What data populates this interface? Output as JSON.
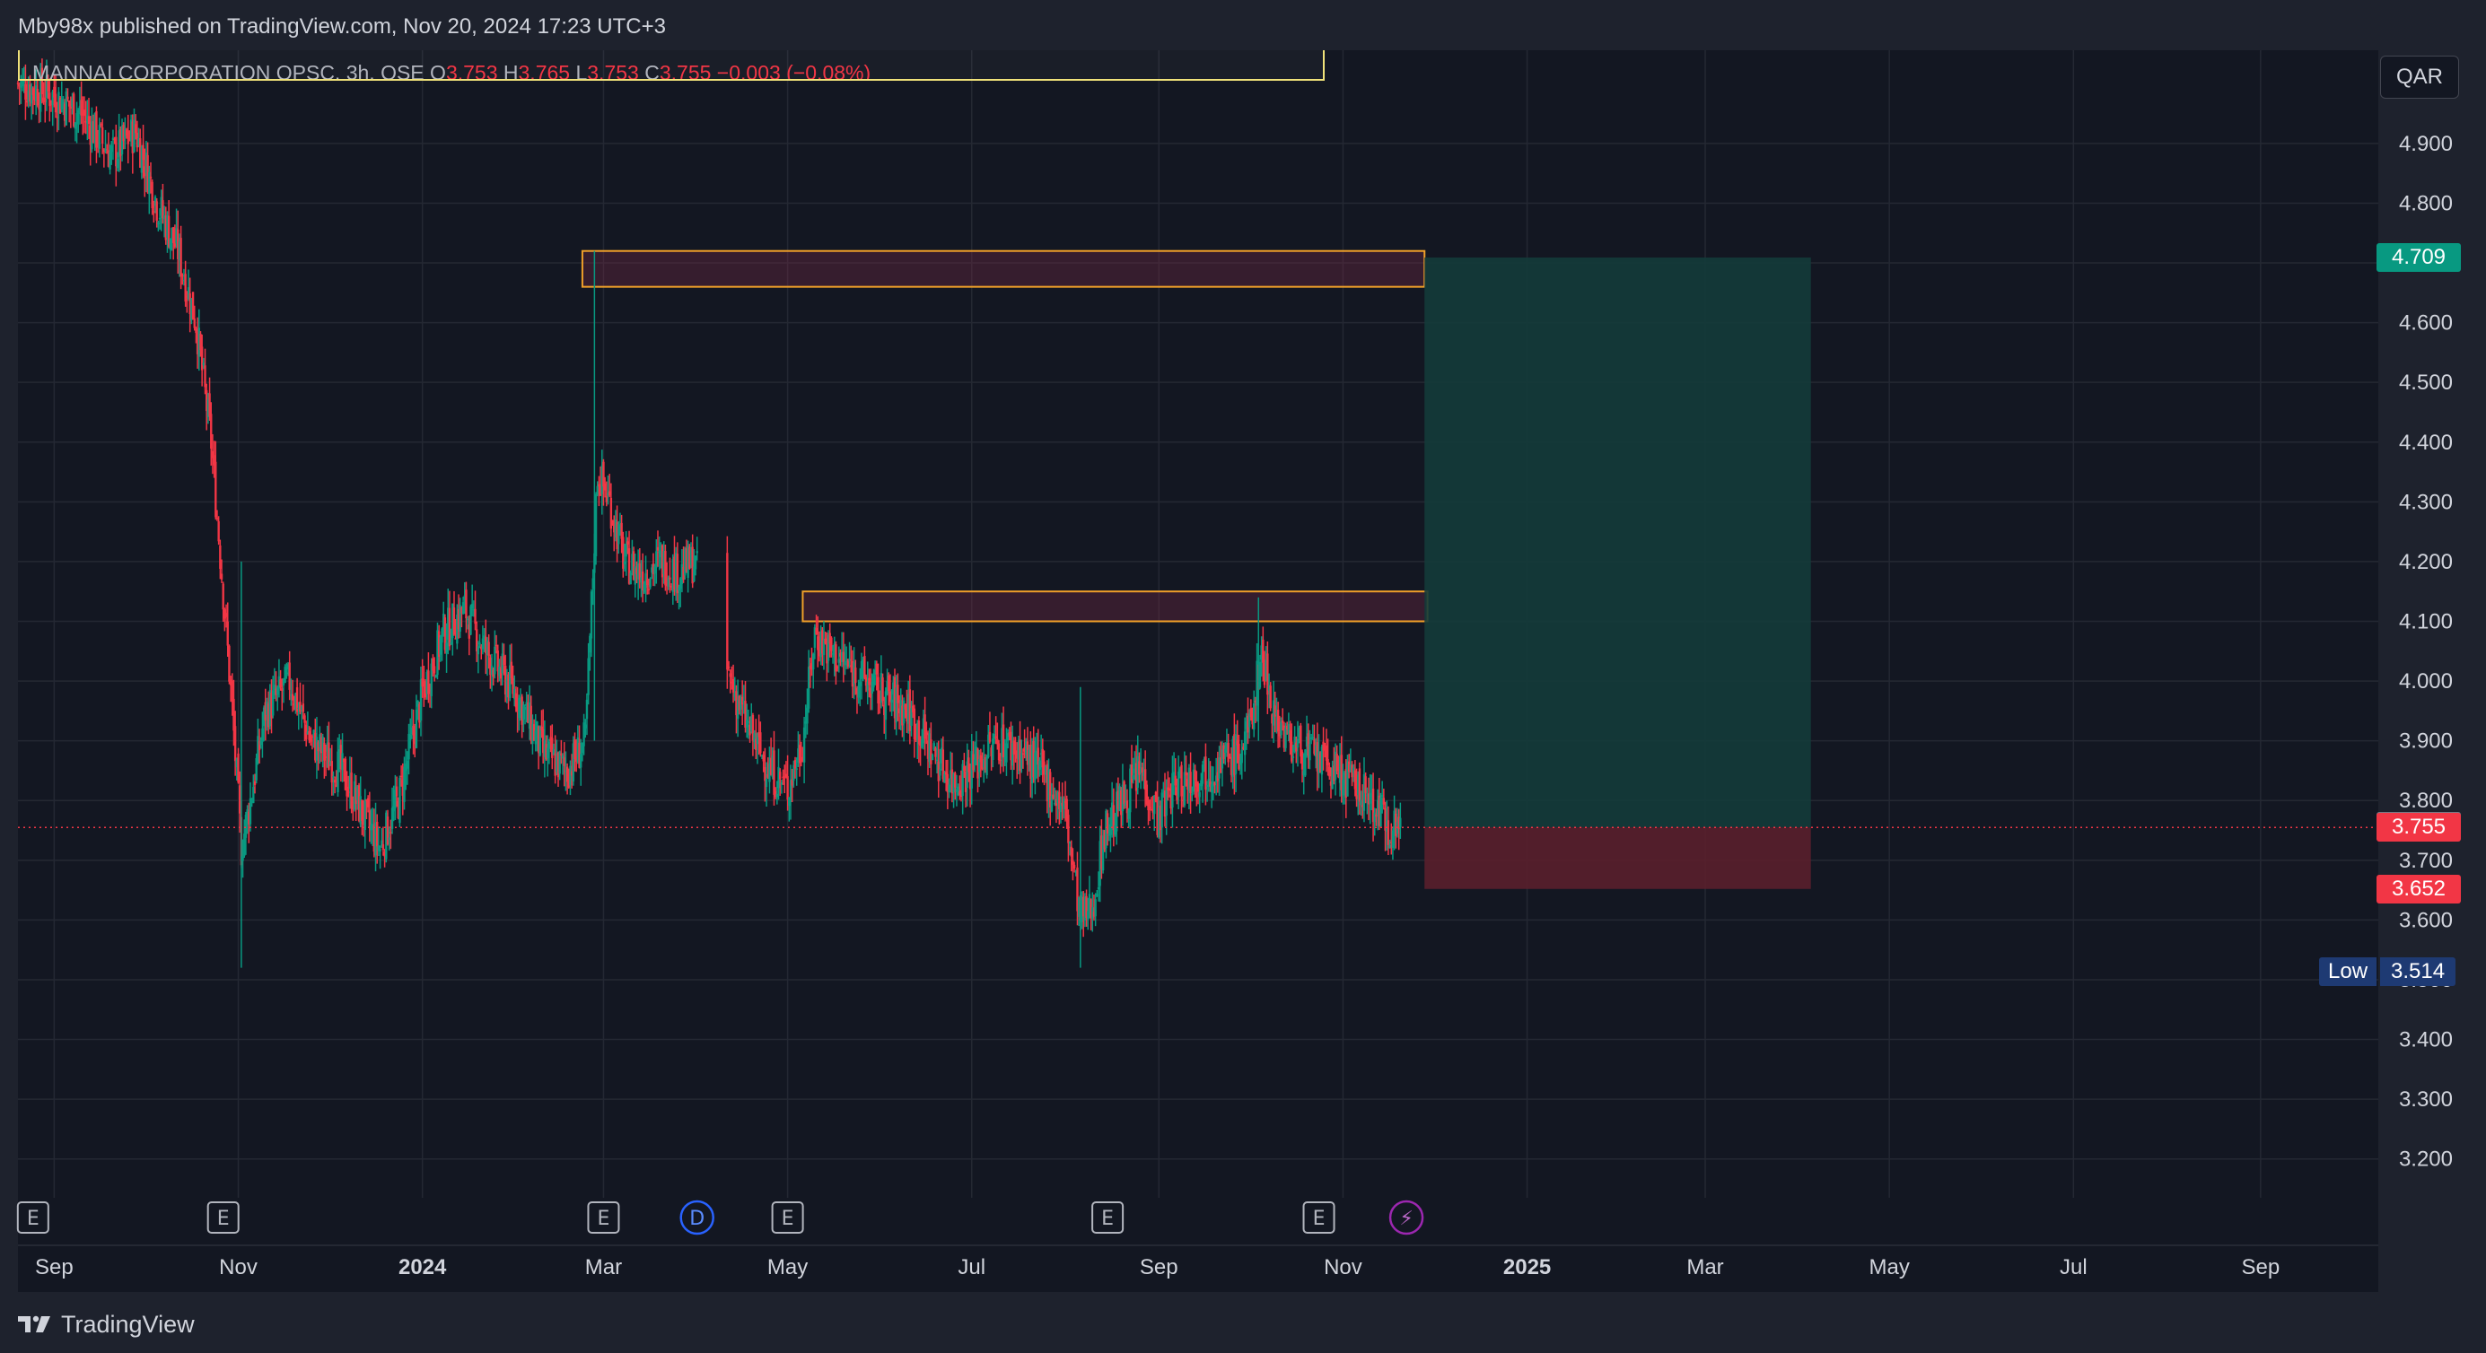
{
  "header": {
    "publisher": "Mby98x published on TradingView.com, Nov 20, 2024 17:23 UTC+3"
  },
  "legend": {
    "symbol": "MANNAI CORPORATION QPSC, 3h, QSE",
    "open_label": "O",
    "open": "3.753",
    "high_label": "H",
    "high": "3.765",
    "low_label": "L",
    "low": "3.753",
    "close_label": "C",
    "close": "3.755",
    "change": "−0.003 (−0.08%)"
  },
  "currency": "QAR",
  "footer": {
    "brand": "TradingView"
  },
  "colors": {
    "background": "#131722",
    "grid": "#242833",
    "up": "#089981",
    "down": "#f23645",
    "zone": "#f0a029",
    "target_zone": "#143b3a",
    "stop_zone": "#5a1f2c",
    "last_price": "#f23645",
    "low_badge": "#1e3a73"
  },
  "chart_data": {
    "type": "candlestick",
    "symbol": "MANNAI CORPORATION QPSC",
    "timeframe": "3h",
    "ylim": [
      3.15,
      5.05
    ],
    "y_ticks": [
      3.2,
      3.3,
      3.4,
      3.5,
      3.6,
      3.7,
      3.8,
      3.9,
      4.0,
      4.1,
      4.2,
      4.3,
      4.4,
      4.5,
      4.6,
      4.7,
      4.8,
      4.9
    ],
    "y_tick_labels": [
      "3.200",
      "3.300",
      "3.400",
      "3.500",
      "3.600",
      "3.700",
      "3.800",
      "3.900",
      "4.000",
      "4.100",
      "4.200",
      "4.300",
      "4.400",
      "4.500",
      "4.600",
      "4.700",
      "4.800",
      "4.900"
    ],
    "x_range": [
      "2023-08-20",
      "2025-10-10"
    ],
    "x_ticks": [
      {
        "date": "2023-09-01",
        "label": "Sep",
        "bold": false
      },
      {
        "date": "2023-11-01",
        "label": "Nov",
        "bold": false
      },
      {
        "date": "2024-01-01",
        "label": "2024",
        "bold": true
      },
      {
        "date": "2024-03-01",
        "label": "Mar",
        "bold": false
      },
      {
        "date": "2024-05-01",
        "label": "May",
        "bold": false
      },
      {
        "date": "2024-07-01",
        "label": "Jul",
        "bold": false
      },
      {
        "date": "2024-09-01",
        "label": "Sep",
        "bold": false
      },
      {
        "date": "2024-11-01",
        "label": "Nov",
        "bold": false
      },
      {
        "date": "2025-01-01",
        "label": "2025",
        "bold": true
      },
      {
        "date": "2025-03-01",
        "label": "Mar",
        "bold": false
      },
      {
        "date": "2025-05-01",
        "label": "May",
        "bold": false
      },
      {
        "date": "2025-07-01",
        "label": "Jul",
        "bold": false
      },
      {
        "date": "2025-09-01",
        "label": "Sep",
        "bold": false
      }
    ],
    "price_path": [
      [
        "2023-08-20",
        5.0
      ],
      [
        "2023-09-01",
        4.98
      ],
      [
        "2023-09-10",
        4.95
      ],
      [
        "2023-09-20",
        4.88
      ],
      [
        "2023-09-28",
        4.92
      ],
      [
        "2023-10-05",
        4.8
      ],
      [
        "2023-10-12",
        4.72
      ],
      [
        "2023-10-18",
        4.6
      ],
      [
        "2023-10-23",
        4.4
      ],
      [
        "2023-10-27",
        4.15
      ],
      [
        "2023-10-30",
        3.95
      ],
      [
        "2023-11-02",
        3.72
      ],
      [
        "2023-11-05",
        3.8
      ],
      [
        "2023-11-10",
        3.95
      ],
      [
        "2023-11-18",
        4.0
      ],
      [
        "2023-11-25",
        3.9
      ],
      [
        "2023-12-05",
        3.85
      ],
      [
        "2023-12-12",
        3.78
      ],
      [
        "2023-12-18",
        3.72
      ],
      [
        "2023-12-24",
        3.8
      ],
      [
        "2024-01-01",
        3.98
      ],
      [
        "2024-01-08",
        4.08
      ],
      [
        "2024-01-15",
        4.12
      ],
      [
        "2024-01-22",
        4.05
      ],
      [
        "2024-02-01",
        3.98
      ],
      [
        "2024-02-10",
        3.88
      ],
      [
        "2024-02-18",
        3.85
      ],
      [
        "2024-02-24",
        3.9
      ],
      [
        "2024-02-28",
        4.35
      ],
      [
        "2024-03-03",
        4.3
      ],
      [
        "2024-03-08",
        4.2
      ],
      [
        "2024-03-14",
        4.18
      ],
      [
        "2024-03-20",
        4.2
      ],
      [
        "2024-03-26",
        4.18
      ],
      [
        "2024-03-31",
        4.2
      ],
      [
        "2024-04-12",
        4.0
      ],
      [
        "2024-04-18",
        3.92
      ],
      [
        "2024-04-25",
        3.85
      ],
      [
        "2024-05-01",
        3.82
      ],
      [
        "2024-05-06",
        3.9
      ],
      [
        "2024-05-10",
        4.08
      ],
      [
        "2024-05-15",
        4.05
      ],
      [
        "2024-05-22",
        4.02
      ],
      [
        "2024-06-01",
        3.98
      ],
      [
        "2024-06-10",
        3.95
      ],
      [
        "2024-06-18",
        3.88
      ],
      [
        "2024-06-25",
        3.83
      ],
      [
        "2024-07-02",
        3.86
      ],
      [
        "2024-07-10",
        3.9
      ],
      [
        "2024-07-18",
        3.88
      ],
      [
        "2024-07-25",
        3.84
      ],
      [
        "2024-08-01",
        3.78
      ],
      [
        "2024-08-06",
        3.6
      ],
      [
        "2024-08-10",
        3.62
      ],
      [
        "2024-08-14",
        3.75
      ],
      [
        "2024-08-20",
        3.8
      ],
      [
        "2024-08-26",
        3.85
      ],
      [
        "2024-09-01",
        3.77
      ],
      [
        "2024-09-05",
        3.82
      ],
      [
        "2024-09-12",
        3.84
      ],
      [
        "2024-09-20",
        3.86
      ],
      [
        "2024-09-28",
        3.88
      ],
      [
        "2024-10-01",
        3.92
      ],
      [
        "2024-10-05",
        4.05
      ],
      [
        "2024-10-09",
        3.95
      ],
      [
        "2024-10-14",
        3.9
      ],
      [
        "2024-10-20",
        3.88
      ],
      [
        "2024-10-26",
        3.86
      ],
      [
        "2024-11-01",
        3.84
      ],
      [
        "2024-11-06",
        3.82
      ],
      [
        "2024-11-12",
        3.79
      ],
      [
        "2024-11-16",
        3.76
      ],
      [
        "2024-11-20",
        3.755
      ]
    ],
    "rectangles": [
      {
        "kind": "resistance-zone",
        "x0": "2024-02-23",
        "x1": "2024-11-28",
        "y0": 4.66,
        "y1": 4.72
      },
      {
        "kind": "support-zone",
        "x0": "2024-05-06",
        "x1": "2024-11-29",
        "y0": 4.1,
        "y1": 4.15
      }
    ],
    "position": {
      "type": "long",
      "entry": 3.755,
      "target": 4.709,
      "stop": 3.652,
      "x0": "2024-11-28",
      "x1": "2025-04-05"
    },
    "price_labels": [
      {
        "value": "4.709",
        "price": 4.709,
        "style": "target"
      },
      {
        "value": "3.757",
        "price": 3.757,
        "style": "grey"
      },
      {
        "value": "3.755",
        "price": 3.755,
        "style": "last"
      },
      {
        "value": "3.652",
        "price": 3.652,
        "style": "stop"
      }
    ],
    "low_marker": {
      "label": "Low",
      "value": "3.514",
      "price": 3.514
    },
    "events": [
      {
        "date": "2023-08-25",
        "label": "E"
      },
      {
        "date": "2023-10-27",
        "label": "E"
      },
      {
        "date": "2024-03-01",
        "label": "E"
      },
      {
        "date": "2024-04-01",
        "label": "D"
      },
      {
        "date": "2024-05-01",
        "label": "E"
      },
      {
        "date": "2024-08-15",
        "label": "E"
      },
      {
        "date": "2024-10-24",
        "label": "E"
      },
      {
        "date": "2024-11-22",
        "label": "⚡"
      }
    ]
  }
}
